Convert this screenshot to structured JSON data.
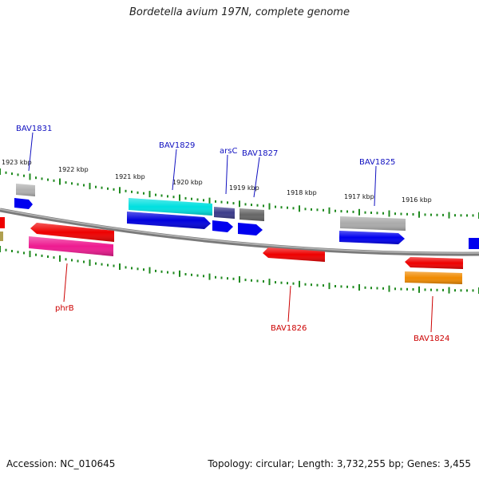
{
  "title": "Bordetella avium 197N, complete genome",
  "footer": {
    "accession": "Accession: NC_010645",
    "summary": "Topology: circular; Length: 3,732,255 bp; Genes: 3,455"
  },
  "colors": {
    "backbone": "#7a7a7a",
    "tick": "#1f8a1f",
    "label_top": "#1010c0",
    "label_bottom": "#cc0000"
  },
  "scale_labels": [
    "1923 kbp",
    "1922 kbp",
    "1921 kbp",
    "1920 kbp",
    "1919 kbp",
    "1918 kbp",
    "1917 kbp",
    "1916 kbp"
  ],
  "top_labels": [
    "BAV1831",
    "BAV1829",
    "arsC",
    "BAV1827",
    "BAV1825"
  ],
  "bottom_labels": [
    "phrB",
    "BAV1826",
    "BAV1824"
  ],
  "genes": [
    {
      "name": "gray-small",
      "color": "#b0b0b0"
    },
    {
      "name": "blue-small",
      "color": "#0000ee"
    },
    {
      "name": "cyan",
      "color": "#00e0e0"
    },
    {
      "name": "blue-long",
      "color": "#0000dd"
    },
    {
      "name": "navy",
      "color": "#3a3a8a"
    },
    {
      "name": "blue-arsC",
      "color": "#0000ee"
    },
    {
      "name": "dark-gray",
      "color": "#666666"
    },
    {
      "name": "blue-1827",
      "color": "#0000ee"
    },
    {
      "name": "light-gray",
      "color": "#aaaaaa"
    },
    {
      "name": "blue-1825",
      "color": "#0000ee"
    },
    {
      "name": "blue-edge",
      "color": "#0000ee"
    },
    {
      "name": "red-edge",
      "color": "#ee0000"
    },
    {
      "name": "olive-edge",
      "color": "#b0a050"
    },
    {
      "name": "red-phrB",
      "color": "#ee0000"
    },
    {
      "name": "pink",
      "color": "#ee1a90"
    },
    {
      "name": "red-1826",
      "color": "#ee0000"
    },
    {
      "name": "red-1824",
      "color": "#ee0000"
    },
    {
      "name": "orange",
      "color": "#f08a00"
    }
  ]
}
